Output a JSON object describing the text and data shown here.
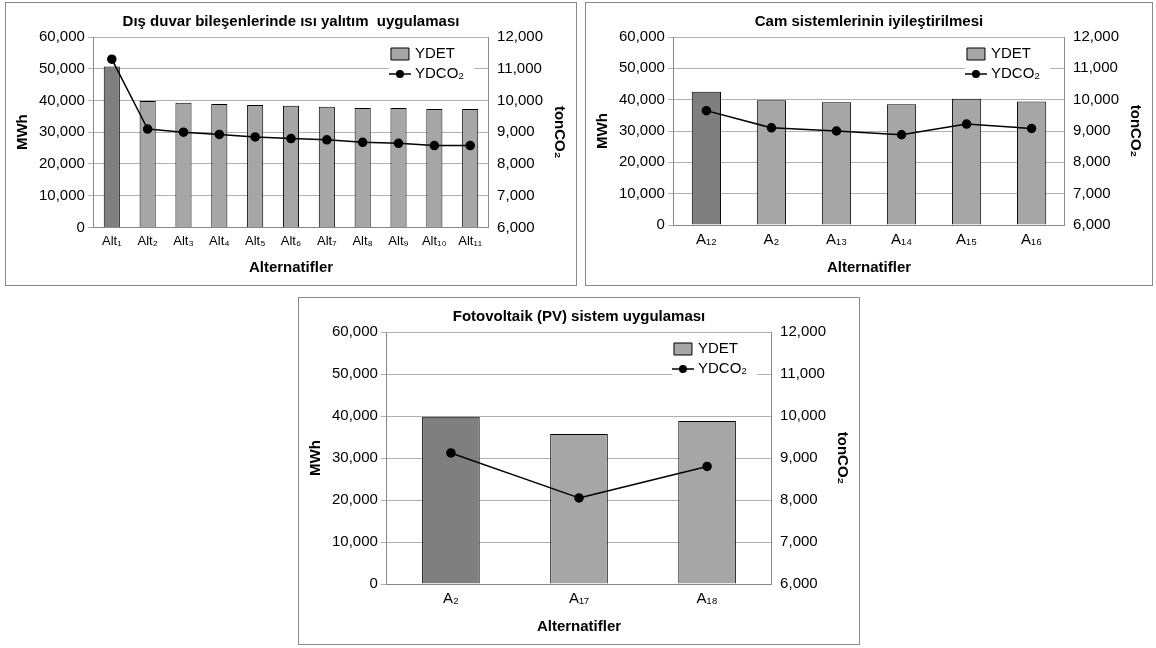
{
  "chart_data": [
    {
      "type": "bar",
      "title": "Dış duvar bileşenlerinde ısı yalıtım  uygulaması",
      "xlabel": "Alternatifler",
      "ylabel": "MWh",
      "y2label": "tonCO₂",
      "categories": [
        "Alt₁",
        "Alt₂",
        "Alt₃",
        "Alt₄",
        "Alt₅",
        "Alt₆",
        "Alt₇",
        "Alt₈",
        "Alt₉",
        "Alt₁₀",
        "Alt₁₁"
      ],
      "series": [
        {
          "name": "YDET",
          "color": "#a6a6a6",
          "colors": [
            "#7f7f7f",
            "#a6a6a6",
            "#a6a6a6",
            "#a6a6a6",
            "#a6a6a6",
            "#a6a6a6",
            "#a6a6a6",
            "#a6a6a6",
            "#a6a6a6",
            "#a6a6a6",
            "#a6a6a6"
          ],
          "values": [
            50700,
            39800,
            39300,
            38900,
            38600,
            38300,
            38000,
            37600,
            37600,
            37300,
            37300
          ]
        },
        {
          "name": "YDCO₂",
          "type": "line",
          "axis": "y2",
          "color": "#000000",
          "values": [
            11300,
            9100,
            9000,
            8930,
            8850,
            8800,
            8760,
            8680,
            8650,
            8580,
            8580
          ]
        }
      ],
      "ylim": [
        0,
        60000
      ],
      "yticks": [
        {
          "value": 0,
          "label": "0"
        },
        {
          "value": 10000,
          "label": "10,000"
        },
        {
          "value": 20000,
          "label": "20,000"
        },
        {
          "value": 30000,
          "label": "30,000"
        },
        {
          "value": 40000,
          "label": "40,000"
        },
        {
          "value": 50000,
          "label": "50,000"
        },
        {
          "value": 60000,
          "label": "60,000"
        }
      ],
      "y2lim": [
        6000,
        12000
      ],
      "y2ticks": [
        {
          "value": 6000,
          "label": "6,000"
        },
        {
          "value": 7000,
          "label": "7,000"
        },
        {
          "value": 8000,
          "label": "8,000"
        },
        {
          "value": 9000,
          "label": "9,000"
        },
        {
          "value": 10000,
          "label": "10,000"
        },
        {
          "value": 11000,
          "label": "11,000"
        },
        {
          "value": 12000,
          "label": "12,000"
        }
      ],
      "grid": "y",
      "legend": "top right",
      "marker": "circle"
    },
    {
      "type": "bar",
      "title": "Cam sistemlerinin iyileştirilmesi",
      "xlabel": "Alternatifler",
      "ylabel": "MWh",
      "y2label": "tonCO₂",
      "categories": [
        "A₁₂",
        "A₂",
        "A₁₃",
        "A₁₄",
        "A₁₅",
        "A₁₆"
      ],
      "series": [
        {
          "name": "YDET",
          "color": "#a6a6a6",
          "colors": [
            "#7f7f7f",
            "#a6a6a6",
            "#a6a6a6",
            "#a6a6a6",
            "#a6a6a6",
            "#a6a6a6"
          ],
          "values": [
            42500,
            39800,
            39200,
            38500,
            40300,
            39400
          ]
        },
        {
          "name": "YDCO₂",
          "type": "line",
          "axis": "y2",
          "color": "#000000",
          "values": [
            9650,
            9100,
            9000,
            8880,
            9220,
            9080
          ]
        }
      ],
      "ylim": [
        0,
        60000
      ],
      "yticks": [
        {
          "value": 0,
          "label": "0"
        },
        {
          "value": 10000,
          "label": "10,000"
        },
        {
          "value": 20000,
          "label": "20,000"
        },
        {
          "value": 30000,
          "label": "30,000"
        },
        {
          "value": 40000,
          "label": "40,000"
        },
        {
          "value": 50000,
          "label": "50,000"
        },
        {
          "value": 60000,
          "label": "60,000"
        }
      ],
      "y2lim": [
        6000,
        12000
      ],
      "y2ticks": [
        {
          "value": 6000,
          "label": "6,000"
        },
        {
          "value": 7000,
          "label": "7,000"
        },
        {
          "value": 8000,
          "label": "8,000"
        },
        {
          "value": 9000,
          "label": "9,000"
        },
        {
          "value": 10000,
          "label": "10,000"
        },
        {
          "value": 11000,
          "label": "11,000"
        },
        {
          "value": 12000,
          "label": "12,000"
        }
      ],
      "grid": "y",
      "legend": "top right",
      "marker": "circle"
    },
    {
      "type": "bar",
      "title": "Fotovoltaik (PV) sistem uygulaması",
      "xlabel": "Alternatifler",
      "ylabel": "MWh",
      "y2label": "tonCO₂",
      "categories": [
        "A₂",
        "A₁₇",
        "A₁₈"
      ],
      "series": [
        {
          "name": "YDET",
          "color": "#a6a6a6",
          "colors": [
            "#7f7f7f",
            "#a6a6a6",
            "#a6a6a6"
          ],
          "values": [
            39800,
            35700,
            38800
          ]
        },
        {
          "name": "YDCO₂",
          "type": "line",
          "axis": "y2",
          "color": "#000000",
          "values": [
            9120,
            8050,
            8800
          ]
        }
      ],
      "ylim": [
        0,
        60000
      ],
      "yticks": [
        {
          "value": 0,
          "label": "0"
        },
        {
          "value": 10000,
          "label": "10,000"
        },
        {
          "value": 20000,
          "label": "20,000"
        },
        {
          "value": 30000,
          "label": "30,000"
        },
        {
          "value": 40000,
          "label": "40,000"
        },
        {
          "value": 50000,
          "label": "50,000"
        },
        {
          "value": 60000,
          "label": "60,000"
        }
      ],
      "y2lim": [
        6000,
        12000
      ],
      "y2ticks": [
        {
          "value": 6000,
          "label": "6,000"
        },
        {
          "value": 7000,
          "label": "7,000"
        },
        {
          "value": 8000,
          "label": "8,000"
        },
        {
          "value": 9000,
          "label": "9,000"
        },
        {
          "value": 10000,
          "label": "10,000"
        },
        {
          "value": 11000,
          "label": "11,000"
        },
        {
          "value": 12000,
          "label": "12,000"
        }
      ],
      "grid": "y",
      "legend": "top right",
      "marker": "circle"
    }
  ]
}
